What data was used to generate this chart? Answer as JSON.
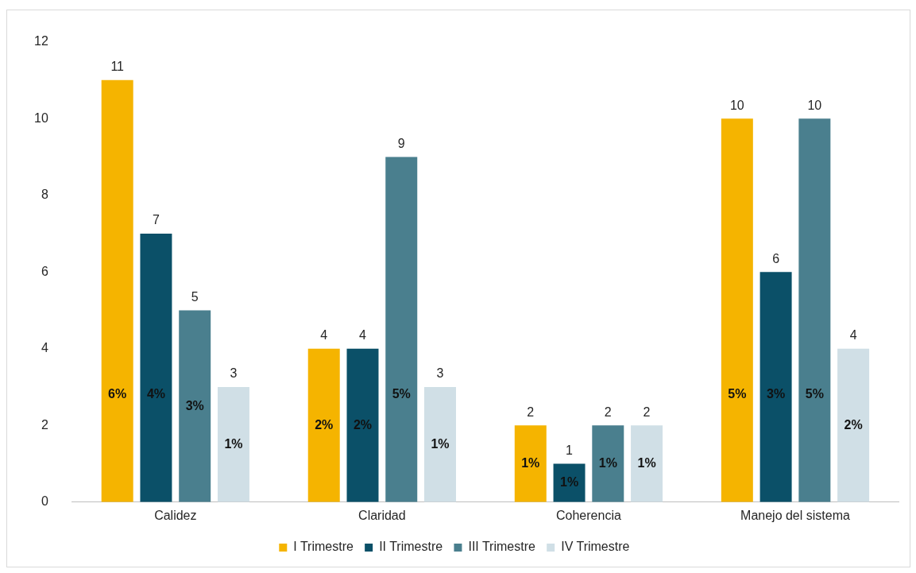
{
  "chart_data": {
    "type": "bar",
    "categories": [
      "Calidez",
      "Claridad",
      "Coherencia",
      "Manejo del sistema"
    ],
    "series": [
      {
        "name": "I Trimestre",
        "color": "#f5b400",
        "values": [
          11,
          4,
          2,
          10
        ]
      },
      {
        "name": "II Trimestre",
        "color": "#0b5068",
        "values": [
          7,
          4,
          1,
          6
        ]
      },
      {
        "name": "III Trimestre",
        "color": "#4a7f8e",
        "values": [
          5,
          9,
          2,
          10
        ]
      },
      {
        "name": "IV Trimestre",
        "color": "#d0dfe6",
        "values": [
          3,
          3,
          2,
          4
        ]
      }
    ],
    "annotations": [
      "6%",
      "4%",
      "3%",
      "1%",
      "2%",
      "2%",
      "5%",
      "1%",
      "1%",
      "1%",
      "1%",
      "1%",
      "5%",
      "3%",
      "5%",
      "2%"
    ],
    "ylim": [
      0,
      12
    ],
    "yticks": [
      0,
      2,
      4,
      6,
      8,
      10,
      12
    ],
    "grid": false,
    "legend": "bottom",
    "data_labels": true
  }
}
